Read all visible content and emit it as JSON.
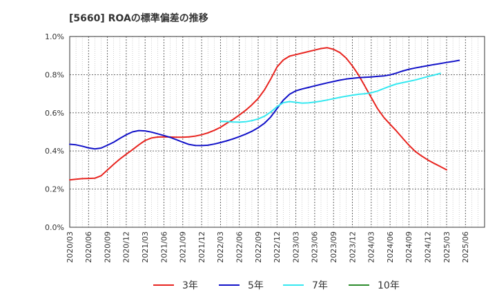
{
  "chart_data": {
    "type": "line",
    "title": "[5660]  ROAの標準偏差の推移",
    "xlabel": "",
    "ylabel": "",
    "ylim": [
      0,
      1.0
    ],
    "y_ticks": [
      "0.0%",
      "0.2%",
      "0.4%",
      "0.6%",
      "0.8%",
      "1.0%"
    ],
    "x_ticks": [
      "2020/03",
      "2020/06",
      "2020/09",
      "2020/12",
      "2021/03",
      "2021/06",
      "2021/09",
      "2021/12",
      "2022/03",
      "2022/06",
      "2022/09",
      "2022/12",
      "2023/03",
      "2023/06",
      "2023/09",
      "2023/12",
      "2024/03",
      "2024/06",
      "2024/09",
      "2024/12",
      "2025/03",
      "2025/06"
    ],
    "grid": true,
    "legend_position": "bottom",
    "series": [
      {
        "name": "3年",
        "color": "#e8231e",
        "start_index": 0,
        "values": [
          0.248,
          0.252,
          0.255,
          0.256,
          0.257,
          0.27,
          0.3,
          0.33,
          0.358,
          0.383,
          0.407,
          0.432,
          0.455,
          0.468,
          0.473,
          0.474,
          0.473,
          0.472,
          0.472,
          0.474,
          0.478,
          0.485,
          0.495,
          0.508,
          0.524,
          0.545,
          0.565,
          0.588,
          0.613,
          0.642,
          0.675,
          0.72,
          0.777,
          0.84,
          0.877,
          0.897,
          0.905,
          0.913,
          0.921,
          0.929,
          0.937,
          0.941,
          0.933,
          0.916,
          0.887,
          0.846,
          0.797,
          0.739,
          0.68,
          0.622,
          0.576,
          0.54,
          0.505,
          0.467,
          0.43,
          0.398,
          0.374,
          0.353,
          0.335,
          0.318,
          0.301
        ]
      },
      {
        "name": "5年",
        "color": "#1010c8",
        "start_index": 0,
        "values": [
          0.435,
          0.432,
          0.425,
          0.416,
          0.411,
          0.415,
          0.43,
          0.446,
          0.466,
          0.485,
          0.5,
          0.507,
          0.505,
          0.499,
          0.49,
          0.481,
          0.471,
          0.459,
          0.446,
          0.434,
          0.429,
          0.428,
          0.43,
          0.436,
          0.444,
          0.453,
          0.463,
          0.475,
          0.488,
          0.503,
          0.522,
          0.545,
          0.578,
          0.622,
          0.666,
          0.697,
          0.715,
          0.725,
          0.733,
          0.741,
          0.749,
          0.757,
          0.764,
          0.771,
          0.777,
          0.781,
          0.784,
          0.786,
          0.788,
          0.791,
          0.793,
          0.799,
          0.808,
          0.819,
          0.828,
          0.835,
          0.841,
          0.847,
          0.853,
          0.858,
          0.864,
          0.869,
          0.875
        ]
      },
      {
        "name": "7年",
        "color": "#33e8f0",
        "start_index": 24,
        "values": [
          0.555,
          0.554,
          0.552,
          0.551,
          0.553,
          0.559,
          0.568,
          0.582,
          0.604,
          0.632,
          0.653,
          0.659,
          0.655,
          0.651,
          0.652,
          0.656,
          0.661,
          0.667,
          0.674,
          0.681,
          0.687,
          0.692,
          0.697,
          0.7,
          0.705,
          0.714,
          0.727,
          0.74,
          0.751,
          0.758,
          0.765,
          0.772,
          0.781,
          0.79,
          0.798,
          0.807
        ]
      },
      {
        "name": "10年",
        "color": "#2a8a2a",
        "start_index": 0,
        "values": []
      }
    ]
  }
}
